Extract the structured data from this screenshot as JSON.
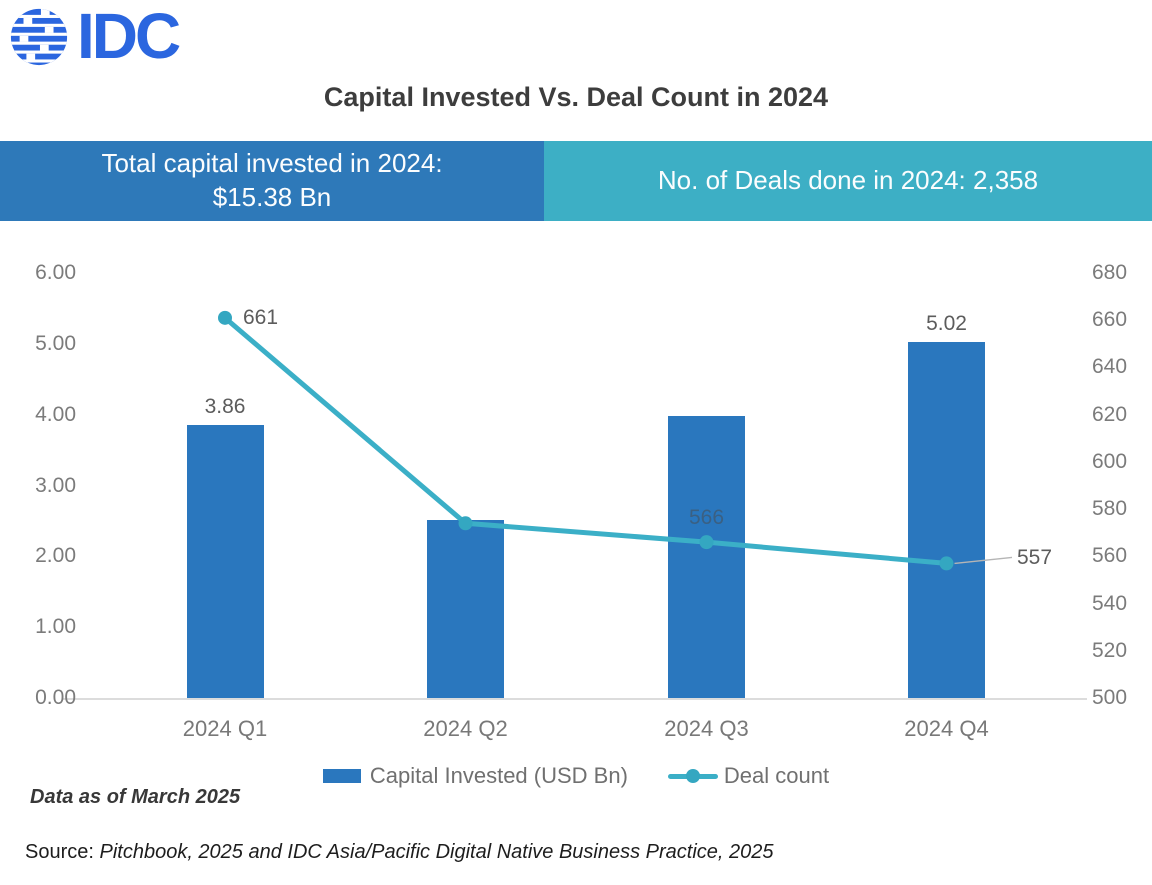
{
  "logo": {
    "text": "IDC",
    "color": "#2B66DF"
  },
  "banners": {
    "left": {
      "line1": "Total capital invested in 2024:",
      "line2": "$15.38 Bn",
      "color": "#2E79B9"
    },
    "right": {
      "label": "No. of Deals done in 2024: 2,358",
      "color": "#3DAFC5"
    }
  },
  "chart_data": {
    "type": "combo",
    "title": "Capital Invested Vs. Deal Count in 2024",
    "categories": [
      "2024 Q1",
      "2024 Q2",
      "2024 Q3",
      "2024 Q4"
    ],
    "series": [
      {
        "name": "Capital Invested (USD Bn)",
        "type": "bar",
        "axis": "left",
        "color": "#2A77BE",
        "values": [
          3.86,
          2.52,
          3.98,
          5.02
        ],
        "data_labels": [
          "3.86",
          null,
          null,
          "5.02"
        ]
      },
      {
        "name": "Deal count",
        "type": "line",
        "axis": "right",
        "color": "#3BAFC7",
        "marker_color": "#34A7C1",
        "values": [
          661,
          574,
          566,
          557
        ],
        "data_labels": [
          "661",
          null,
          "566",
          "557"
        ]
      }
    ],
    "left_axis": {
      "range": [
        0,
        6
      ],
      "ticks": [
        "6.00",
        "5.00",
        "4.00",
        "3.00",
        "2.00",
        "1.00",
        "0.00"
      ]
    },
    "right_axis": {
      "range": [
        500,
        680
      ],
      "ticks": [
        "680",
        "660",
        "640",
        "620",
        "600",
        "580",
        "560",
        "540",
        "520",
        "500"
      ]
    },
    "legend_position": "bottom",
    "grid": "off"
  },
  "footer": {
    "data_as_of": "Data as of March 2025",
    "source_prefix": "Source: ",
    "source_text": "Pitchbook, 2025 and IDC Asia/Pacific Digital Native Business Practice, 2025"
  }
}
